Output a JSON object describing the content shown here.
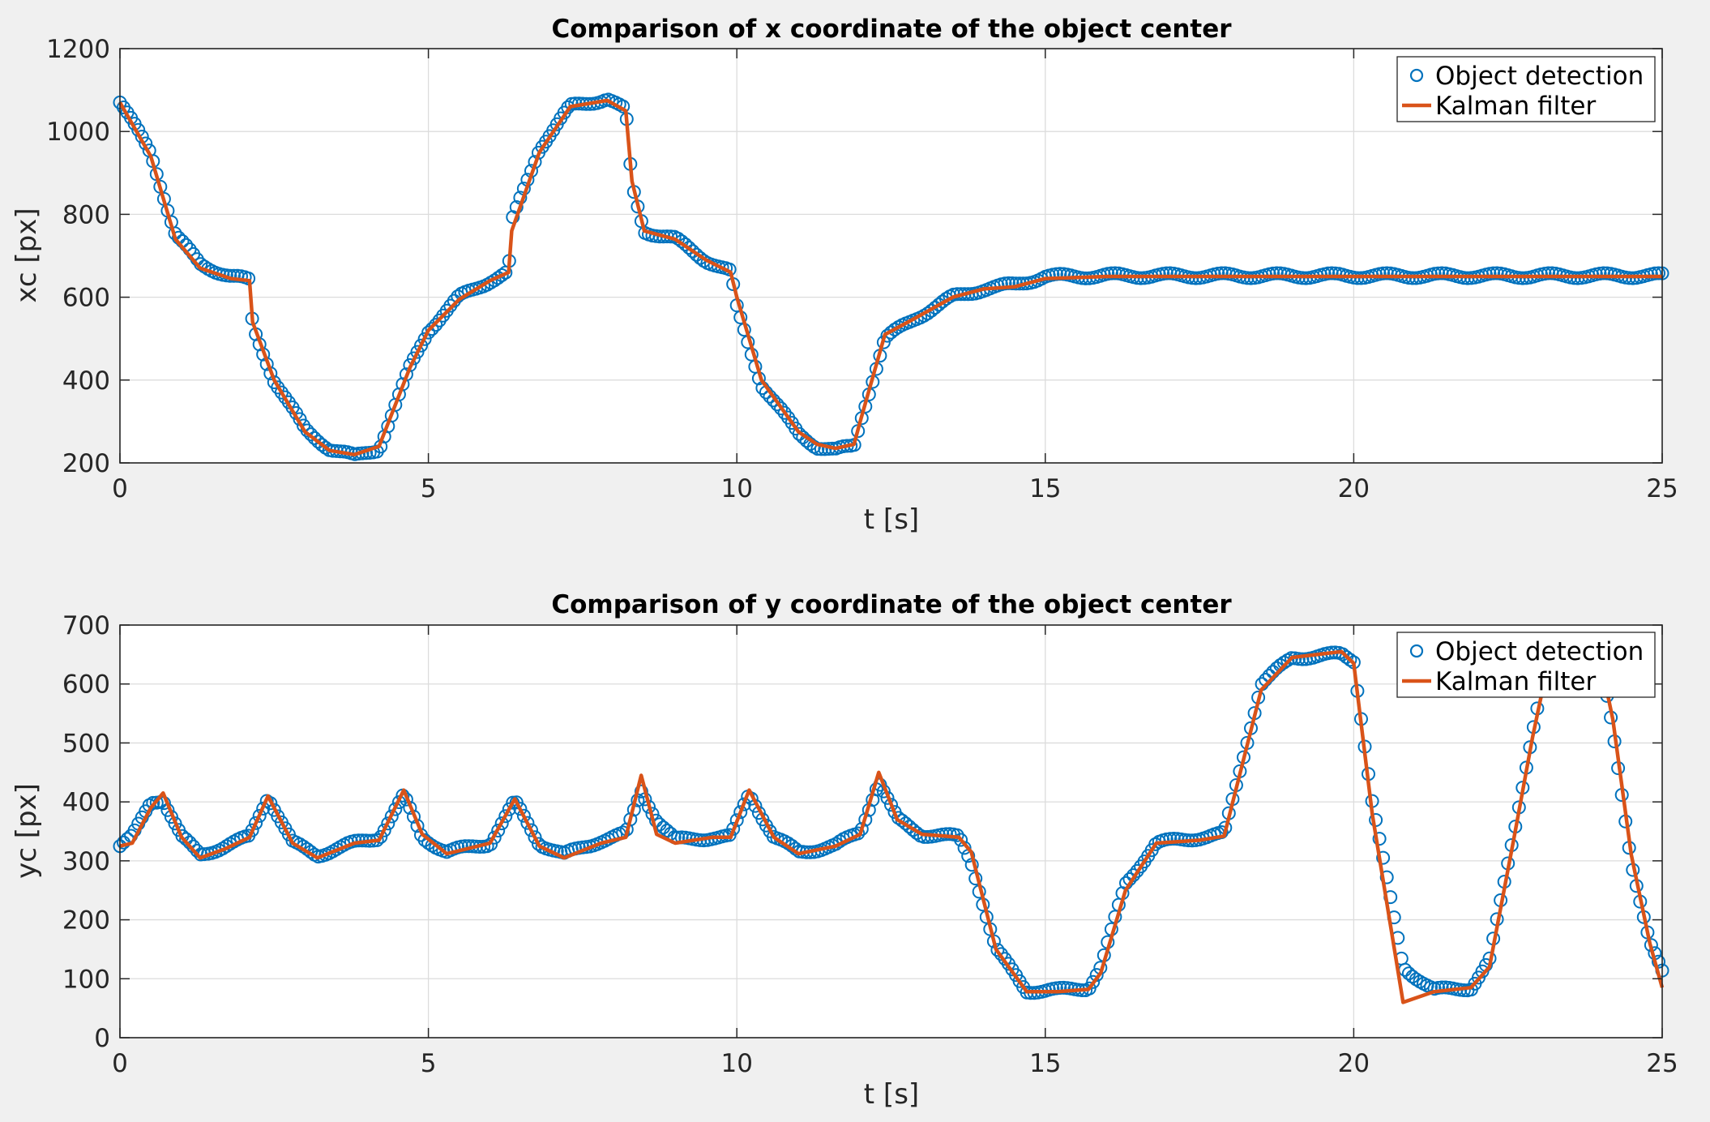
{
  "colors": {
    "detection": "#0072BD",
    "kalman": "#D95319",
    "axes_bg": "#ffffff",
    "figure_bg": "#f0f0f0"
  },
  "chart_data": [
    {
      "type": "line",
      "title": "Comparison of x coordinate of the object center",
      "xlabel": "t [s]",
      "ylabel": "xc [px]",
      "xlim": [
        0,
        25
      ],
      "ylim": [
        200,
        1200
      ],
      "xticks": [
        "0",
        "5",
        "10",
        "15",
        "20",
        "25"
      ],
      "yticks": [
        "200",
        "400",
        "600",
        "800",
        "1000",
        "1200"
      ],
      "grid": true,
      "legend_position": "top-right",
      "series": [
        {
          "name": "Object detection",
          "style": "markers-circle",
          "color": "#0072BD",
          "t": [
            0,
            0.5,
            0.9,
            1.3,
            1.8,
            2.1,
            2.15,
            2.5,
            3.0,
            3.4,
            3.8,
            4.2,
            4.7,
            5.0,
            5.5,
            6.0,
            6.3,
            6.35,
            6.8,
            7.3,
            7.9,
            8.2,
            8.3,
            8.5,
            9.0,
            9.5,
            9.9,
            10.0,
            10.4,
            11.0,
            11.3,
            11.6,
            11.9,
            12.0,
            12.4,
            12.9,
            13.5,
            14.0,
            14.5,
            15.0,
            16,
            17,
            18,
            19,
            20,
            21,
            22,
            23,
            24,
            25
          ],
          "values": [
            1070,
            950,
            750,
            680,
            650,
            640,
            530,
            400,
            280,
            235,
            215,
            235,
            430,
            520,
            600,
            640,
            660,
            780,
            960,
            1060,
            1080,
            1050,
            870,
            760,
            740,
            690,
            660,
            575,
            390,
            270,
            240,
            230,
            240,
            300,
            500,
            550,
            600,
            620,
            630,
            650,
            652,
            652,
            652,
            652,
            652,
            652,
            652,
            652,
            652,
            652
          ]
        },
        {
          "name": "Kalman filter",
          "style": "line",
          "color": "#D95319",
          "t": [
            0,
            0.5,
            0.9,
            1.3,
            1.8,
            2.1,
            2.15,
            2.5,
            3.0,
            3.4,
            3.8,
            4.2,
            4.7,
            5.0,
            5.5,
            6.0,
            6.3,
            6.35,
            6.8,
            7.3,
            7.9,
            8.2,
            8.3,
            8.5,
            9.0,
            9.5,
            9.9,
            10.0,
            10.4,
            11.0,
            11.3,
            11.6,
            11.9,
            12.0,
            12.4,
            12.9,
            13.5,
            14.0,
            14.5,
            15.0,
            16,
            17,
            18,
            19,
            20,
            21,
            22,
            23,
            24,
            25
          ],
          "values": [
            1070,
            940,
            740,
            670,
            645,
            640,
            540,
            400,
            275,
            230,
            220,
            240,
            430,
            520,
            595,
            640,
            660,
            760,
            950,
            1060,
            1075,
            1050,
            880,
            760,
            740,
            690,
            660,
            600,
            400,
            275,
            245,
            235,
            245,
            300,
            510,
            550,
            600,
            620,
            625,
            645,
            650,
            650,
            650,
            650,
            650,
            650,
            650,
            650,
            650,
            650
          ]
        }
      ]
    },
    {
      "type": "line",
      "title": "Comparison of y coordinate of the object center",
      "xlabel": "t [s]",
      "ylabel": "yc [px]",
      "xlim": [
        0,
        25
      ],
      "ylim": [
        0,
        700
      ],
      "xticks": [
        "0",
        "5",
        "10",
        "15",
        "20",
        "25"
      ],
      "yticks": [
        "0",
        "100",
        "200",
        "300",
        "400",
        "500",
        "600",
        "700"
      ],
      "grid": true,
      "legend_position": "top-right",
      "series": [
        {
          "name": "Object detection",
          "style": "markers-circle",
          "color": "#0072BD",
          "t": [
            0,
            0.2,
            0.5,
            0.7,
            1.0,
            1.3,
            1.7,
            2.1,
            2.4,
            2.8,
            3.2,
            3.8,
            4.2,
            4.6,
            4.9,
            5.3,
            6.0,
            6.4,
            6.8,
            7.2,
            7.8,
            8.2,
            8.45,
            8.7,
            9.0,
            9.6,
            9.9,
            10.2,
            10.6,
            11.0,
            11.6,
            12.0,
            12.3,
            12.6,
            13.0,
            13.6,
            13.8,
            14.2,
            14.7,
            15.2,
            15.7,
            15.9,
            16.3,
            16.8,
            17.5,
            17.9,
            18.5,
            19.0,
            19.8,
            20.0,
            20.3,
            20.8,
            21.3,
            21.9,
            22.2,
            22.6,
            22.9,
            23.1,
            23.3,
            23.5,
            24.0,
            24.2,
            24.5,
            24.8,
            25.0
          ],
          "values": [
            325,
            340,
            400,
            405,
            340,
            310,
            325,
            340,
            410,
            330,
            310,
            330,
            340,
            410,
            340,
            315,
            330,
            400,
            330,
            310,
            335,
            345,
            420,
            370,
            335,
            340,
            340,
            415,
            340,
            315,
            325,
            350,
            435,
            370,
            345,
            340,
            300,
            150,
            80,
            80,
            85,
            120,
            260,
            330,
            340,
            345,
            600,
            645,
            650,
            640,
            400,
            120,
            80,
            85,
            130,
            350,
            520,
            620,
            640,
            640,
            640,
            520,
            300,
            160,
            110
          ]
        },
        {
          "name": "Kalman filter",
          "style": "line",
          "color": "#D95319",
          "t": [
            0,
            0.2,
            0.5,
            0.7,
            1.0,
            1.3,
            1.7,
            2.1,
            2.4,
            2.8,
            3.2,
            3.8,
            4.2,
            4.6,
            4.9,
            5.3,
            6.0,
            6.4,
            6.8,
            7.2,
            7.8,
            8.2,
            8.45,
            8.7,
            9.0,
            9.6,
            9.9,
            10.2,
            10.6,
            11.0,
            11.6,
            12.0,
            12.3,
            12.6,
            13.0,
            13.6,
            13.8,
            14.2,
            14.7,
            15.2,
            15.7,
            15.9,
            16.3,
            16.8,
            17.5,
            17.9,
            18.5,
            19.0,
            19.8,
            20.0,
            20.3,
            20.8,
            21.3,
            21.9,
            22.2,
            22.6,
            22.9,
            23.1,
            23.3,
            23.5,
            24.0,
            24.2,
            24.5,
            24.8,
            25.0
          ],
          "values": [
            325,
            330,
            390,
            415,
            340,
            305,
            320,
            340,
            410,
            330,
            305,
            330,
            335,
            420,
            345,
            312,
            330,
            405,
            325,
            305,
            330,
            340,
            445,
            345,
            330,
            340,
            340,
            420,
            340,
            312,
            325,
            345,
            450,
            370,
            345,
            340,
            315,
            150,
            78,
            78,
            82,
            110,
            250,
            330,
            335,
            342,
            590,
            645,
            655,
            635,
            380,
            60,
            78,
            85,
            120,
            340,
            510,
            610,
            640,
            640,
            640,
            540,
            310,
            160,
            85
          ]
        }
      ]
    }
  ]
}
